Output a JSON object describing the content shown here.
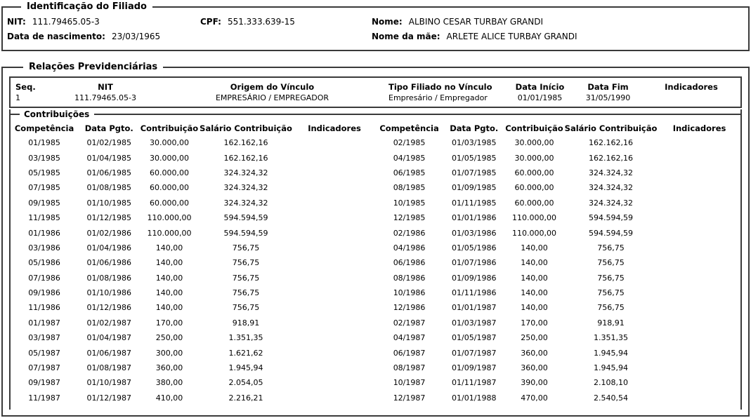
{
  "identificacao": {
    "legend": "Identificação do Filiado",
    "nit_label": "NIT:",
    "nit": "111.79465.05-3",
    "cpf_label": "CPF:",
    "cpf": "551.333.639-15",
    "nome_label": "Nome:",
    "nome": "ALBINO CESAR TURBAY GRANDI",
    "nascimento_label": "Data de nascimento:",
    "nascimento": "23/03/1965",
    "mae_label": "Nome da mãe:",
    "mae": "ARLETE ALICE TURBAY GRANDI"
  },
  "relacoes": {
    "legend": "Relações Previdenciárias",
    "vinculo": {
      "headers": [
        "Seq.",
        "NIT",
        "Origem do Vínculo",
        "Tipo Filiado no Vínculo",
        "Data Início",
        "Data Fim",
        "Indicadores"
      ],
      "rows": [
        [
          "1",
          "111.79465.05-3",
          "EMPRESÁRIO / EMPREGADOR",
          "Empresário / Empregador",
          "01/01/1985",
          "31/05/1990",
          ""
        ]
      ]
    },
    "contribuicoes": {
      "legend": "Contribuições",
      "headers": [
        "Competência",
        "Data Pgto.",
        "Contribuição",
        "Salário Contribuição",
        "Indicadores"
      ],
      "left_rows": [
        [
          "01/1985",
          "01/02/1985",
          "30.000,00",
          "162.162,16",
          ""
        ],
        [
          "03/1985",
          "01/04/1985",
          "30.000,00",
          "162.162,16",
          ""
        ],
        [
          "05/1985",
          "01/06/1985",
          "60.000,00",
          "324.324,32",
          ""
        ],
        [
          "07/1985",
          "01/08/1985",
          "60.000,00",
          "324.324,32",
          ""
        ],
        [
          "09/1985",
          "01/10/1985",
          "60.000,00",
          "324.324,32",
          ""
        ],
        [
          "11/1985",
          "01/12/1985",
          "110.000,00",
          "594.594,59",
          ""
        ],
        [
          "01/1986",
          "01/02/1986",
          "110.000,00",
          "594.594,59",
          ""
        ],
        [
          "03/1986",
          "01/04/1986",
          "140,00",
          "756,75",
          ""
        ],
        [
          "05/1986",
          "01/06/1986",
          "140,00",
          "756,75",
          ""
        ],
        [
          "07/1986",
          "01/08/1986",
          "140,00",
          "756,75",
          ""
        ],
        [
          "09/1986",
          "01/10/1986",
          "140,00",
          "756,75",
          ""
        ],
        [
          "11/1986",
          "01/12/1986",
          "140,00",
          "756,75",
          ""
        ],
        [
          "01/1987",
          "01/02/1987",
          "170,00",
          "918,91",
          ""
        ],
        [
          "03/1987",
          "01/04/1987",
          "250,00",
          "1.351,35",
          ""
        ],
        [
          "05/1987",
          "01/06/1987",
          "300,00",
          "1.621,62",
          ""
        ],
        [
          "07/1987",
          "01/08/1987",
          "360,00",
          "1.945,94",
          ""
        ],
        [
          "09/1987",
          "01/10/1987",
          "380,00",
          "2.054,05",
          ""
        ],
        [
          "11/1987",
          "01/12/1987",
          "410,00",
          "2.216,21",
          ""
        ]
      ],
      "right_rows": [
        [
          "02/1985",
          "01/03/1985",
          "30.000,00",
          "162.162,16",
          ""
        ],
        [
          "04/1985",
          "01/05/1985",
          "30.000,00",
          "162.162,16",
          ""
        ],
        [
          "06/1985",
          "01/07/1985",
          "60.000,00",
          "324.324,32",
          ""
        ],
        [
          "08/1985",
          "01/09/1985",
          "60.000,00",
          "324.324,32",
          ""
        ],
        [
          "10/1985",
          "01/11/1985",
          "60.000,00",
          "324.324,32",
          ""
        ],
        [
          "12/1985",
          "01/01/1986",
          "110.000,00",
          "594.594,59",
          ""
        ],
        [
          "02/1986",
          "01/03/1986",
          "110.000,00",
          "594.594,59",
          ""
        ],
        [
          "04/1986",
          "01/05/1986",
          "140,00",
          "756,75",
          ""
        ],
        [
          "06/1986",
          "01/07/1986",
          "140,00",
          "756,75",
          ""
        ],
        [
          "08/1986",
          "01/09/1986",
          "140,00",
          "756,75",
          ""
        ],
        [
          "10/1986",
          "01/11/1986",
          "140,00",
          "756,75",
          ""
        ],
        [
          "12/1986",
          "01/01/1987",
          "140,00",
          "756,75",
          ""
        ],
        [
          "02/1987",
          "01/03/1987",
          "170,00",
          "918,91",
          ""
        ],
        [
          "04/1987",
          "01/05/1987",
          "250,00",
          "1.351,35",
          ""
        ],
        [
          "06/1987",
          "01/07/1987",
          "360,00",
          "1.945,94",
          ""
        ],
        [
          "08/1987",
          "01/09/1987",
          "360,00",
          "1.945,94",
          ""
        ],
        [
          "10/1987",
          "01/11/1987",
          "390,00",
          "2.108,10",
          ""
        ],
        [
          "12/1987",
          "01/01/1988",
          "470,00",
          "2.540,54",
          ""
        ]
      ]
    }
  }
}
